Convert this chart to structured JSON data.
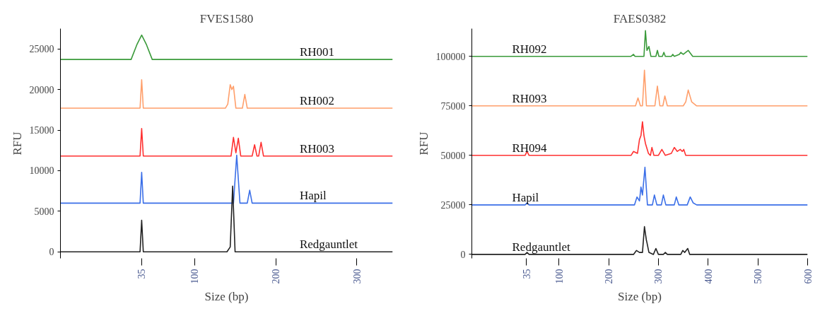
{
  "chart_data": [
    {
      "type": "line",
      "title": "FVES1580",
      "xlabel": "Size (bp)",
      "ylabel": "RFU",
      "xlim": [
        -65,
        344
      ],
      "xticks": [
        35,
        100,
        200,
        300
      ],
      "ylim": [
        -800,
        27500
      ],
      "yticks": [
        0,
        5000,
        10000,
        15000,
        20000,
        25000
      ],
      "grid": false,
      "legend": false,
      "marker": "none",
      "line_style": "solid",
      "series": [
        {
          "name": "RH001",
          "color": "#3a9a3a",
          "x": [
            -65,
            22,
            29,
            35,
            41,
            48,
            344
          ],
          "values": [
            23700,
            23700,
            25500,
            26700,
            25500,
            23700,
            23700
          ]
        },
        {
          "name": "RH002",
          "color": "#ff9f6b",
          "x": [
            -65,
            33,
            35,
            37,
            138,
            141,
            144,
            146,
            148,
            151,
            159,
            162,
            165,
            344
          ],
          "values": [
            17700,
            17700,
            21200,
            17700,
            17700,
            18200,
            20600,
            20000,
            20400,
            17700,
            17700,
            19400,
            17700,
            17700
          ]
        },
        {
          "name": "RH003",
          "color": "#ff3030",
          "x": [
            -65,
            33,
            35,
            37,
            145,
            148,
            151,
            154,
            157,
            171,
            174,
            177,
            179,
            182,
            185,
            344
          ],
          "values": [
            11800,
            11800,
            15200,
            11800,
            11800,
            14100,
            12200,
            14000,
            11800,
            11800,
            13200,
            11800,
            11800,
            13500,
            11800,
            11800
          ]
        },
        {
          "name": "Hapil",
          "color": "#3b6fe8",
          "x": [
            -65,
            33,
            35,
            37,
            148,
            152,
            156,
            165,
            168,
            171,
            344
          ],
          "values": [
            6000,
            6000,
            9800,
            6000,
            6000,
            11900,
            6000,
            6000,
            7600,
            6000,
            6000
          ]
        },
        {
          "name": "Redgauntlet",
          "color": "#222222",
          "x": [
            -65,
            33,
            35,
            37,
            140,
            144,
            147,
            150,
            344
          ],
          "values": [
            0,
            0,
            3900,
            0,
            0,
            600,
            8100,
            0,
            0
          ]
        }
      ]
    },
    {
      "type": "line",
      "title": "FAES0382",
      "xlabel": "Size (bp)",
      "ylabel": "RFU",
      "xlim": [
        -75,
        600
      ],
      "xticks": [
        35,
        100,
        200,
        300,
        400,
        500,
        600
      ],
      "ylim": [
        -2000,
        114000
      ],
      "yticks": [
        0,
        25000,
        50000,
        75000,
        100000
      ],
      "grid": false,
      "legend": false,
      "marker": "none",
      "line_style": "solid",
      "series": [
        {
          "name": "RH092",
          "color": "#3a9a3a",
          "x": [
            -75,
            245,
            250,
            253,
            256,
            271,
            274,
            277,
            281,
            285,
            295,
            298,
            301,
            308,
            311,
            314,
            326,
            329,
            332,
            342,
            345,
            350,
            360,
            369,
            600
          ],
          "values": [
            100000,
            100000,
            101000,
            100000,
            100000,
            100000,
            113000,
            103000,
            105000,
            100000,
            100000,
            103000,
            100000,
            100000,
            102000,
            100000,
            100000,
            101000,
            100000,
            101000,
            102000,
            101000,
            103000,
            100000,
            100000
          ]
        },
        {
          "name": "RH093",
          "color": "#ff9f6b",
          "x": [
            -75,
            254,
            259,
            264,
            268,
            272,
            276,
            293,
            298,
            303,
            309,
            313,
            318,
            350,
            355,
            360,
            367,
            377,
            600
          ],
          "values": [
            75000,
            75000,
            79000,
            75000,
            75000,
            93000,
            75000,
            75000,
            85000,
            75000,
            75000,
            80000,
            75000,
            75000,
            77000,
            83000,
            77000,
            75000,
            75000
          ]
        },
        {
          "name": "RH094",
          "color": "#ff3030",
          "x": [
            -75,
            32,
            36,
            40,
            245,
            250,
            258,
            262,
            265,
            268,
            271,
            274,
            280,
            284,
            287,
            291,
            300,
            307,
            314,
            326,
            332,
            338,
            344,
            348,
            351,
            355,
            600
          ],
          "values": [
            50000,
            50000,
            52000,
            50000,
            50000,
            52000,
            51000,
            58000,
            60000,
            67000,
            60000,
            56000,
            51000,
            50000,
            54000,
            50000,
            50000,
            53000,
            50000,
            51000,
            54000,
            52000,
            53000,
            52000,
            53000,
            50000,
            50000
          ]
        },
        {
          "name": "Hapil",
          "color": "#3b6fe8",
          "x": [
            -75,
            32,
            36,
            40,
            252,
            257,
            262,
            265,
            268,
            273,
            278,
            288,
            292,
            297,
            306,
            310,
            315,
            332,
            336,
            341,
            358,
            364,
            370,
            377,
            600
          ],
          "values": [
            25000,
            25000,
            26000,
            25000,
            25000,
            29000,
            27000,
            34000,
            30000,
            44000,
            25000,
            25000,
            30000,
            25000,
            25000,
            30000,
            25000,
            25000,
            29000,
            25000,
            25000,
            29000,
            26000,
            25000,
            25000
          ]
        },
        {
          "name": "Redgauntlet",
          "color": "#222222",
          "x": [
            -75,
            32,
            36,
            40,
            250,
            256,
            262,
            268,
            272,
            276,
            277,
            281,
            290,
            295,
            300,
            310,
            314,
            318,
            345,
            349,
            353,
            356,
            359,
            363,
            600
          ],
          "values": [
            0,
            0,
            1000,
            0,
            0,
            2000,
            1000,
            1000,
            14000,
            7000,
            6000,
            1000,
            0,
            3000,
            0,
            0,
            1000,
            0,
            0,
            2000,
            1000,
            2000,
            3000,
            0,
            0
          ]
        }
      ]
    }
  ]
}
